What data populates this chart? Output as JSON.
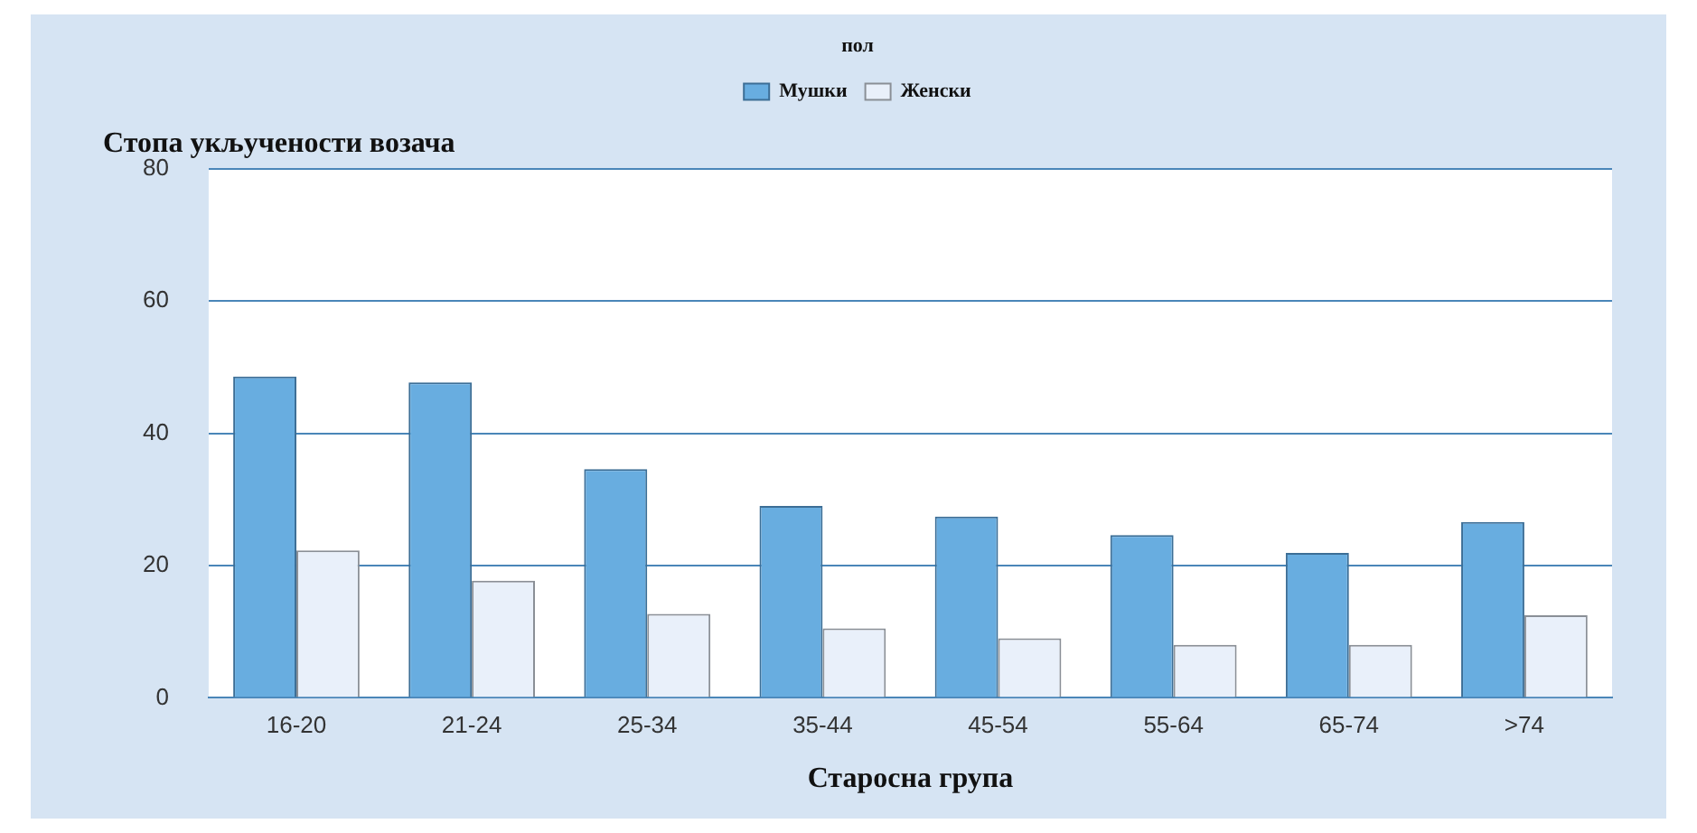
{
  "chart_data": {
    "type": "bar",
    "title": "Стопа укључености возача",
    "xlabel": "Старосна група",
    "legend_title": "пол",
    "legend": "top",
    "grid": "y",
    "categories": [
      "16-20",
      "21-24",
      "25-34",
      "35-44",
      "45-54",
      "55-64",
      "65-74",
      ">74"
    ],
    "series": [
      {
        "name": "Мушки",
        "color": "#68ade0",
        "values": [
          48.6,
          47.7,
          34.6,
          29.0,
          27.4,
          24.6,
          21.9,
          26.6
        ]
      },
      {
        "name": "Женски",
        "color": "#e9f0fa",
        "values": [
          22.3,
          17.7,
          12.7,
          10.5,
          9.0,
          8.0,
          8.0,
          12.5
        ]
      }
    ],
    "ylim": [
      0,
      80
    ],
    "yticks": [
      0,
      20,
      40,
      60,
      80
    ]
  }
}
